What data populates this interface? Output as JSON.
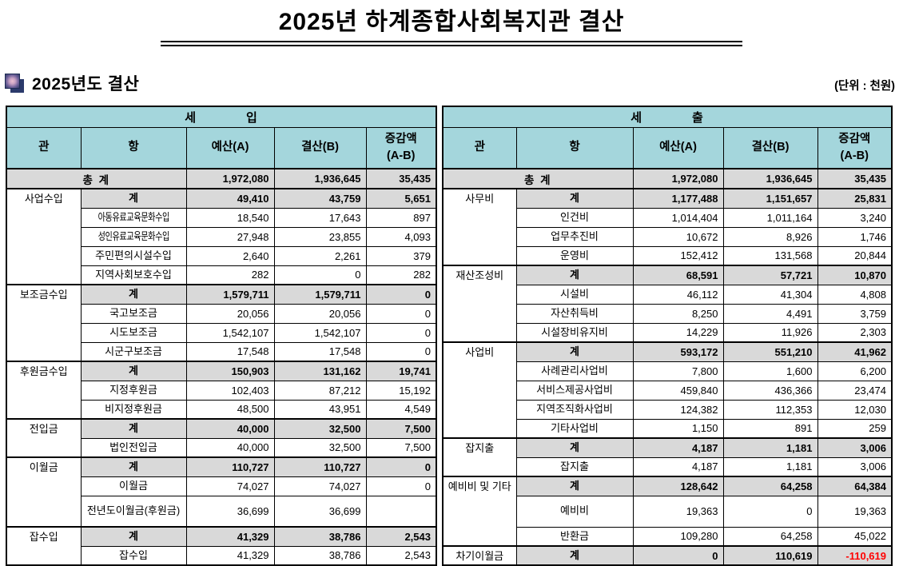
{
  "title": "2025년 하계종합사회복지관 결산",
  "section": {
    "heading": "2025년도 결산",
    "unit_note": "(단위 : 천원)"
  },
  "colors": {
    "header_bg": "#a4d6dc",
    "sum_bg": "#d9d9d9",
    "negative": "#ff0000",
    "border": "#000000"
  },
  "columns": {
    "gwan": "관",
    "hang": "항",
    "budget": "예산(A)",
    "settlement": "결산(B)",
    "diff1": "증감액",
    "diff2": "(A-B)"
  },
  "revenue": {
    "header": "세            입",
    "total": {
      "label": "총 계",
      "budget": "1,972,080",
      "settlement": "1,936,645",
      "diff": "35,435"
    },
    "groups": [
      {
        "name": "사업수입",
        "rows": [
          {
            "item": "계",
            "sum": true,
            "budget": "49,410",
            "settlement": "43,759",
            "diff": "5,651"
          },
          {
            "item": "아동유료교육문화수입",
            "condensed": true,
            "budget": "18,540",
            "settlement": "17,643",
            "diff": "897"
          },
          {
            "item": "성인유료교육문화수입",
            "condensed": true,
            "budget": "27,948",
            "settlement": "23,855",
            "diff": "4,093"
          },
          {
            "item": "주민편의시설수입",
            "budget": "2,640",
            "settlement": "2,261",
            "diff": "379"
          },
          {
            "item": "지역사회보호수입",
            "budget": "282",
            "settlement": "0",
            "diff": "282"
          }
        ]
      },
      {
        "name": "보조금수입",
        "rows": [
          {
            "item": "계",
            "sum": true,
            "budget": "1,579,711",
            "settlement": "1,579,711",
            "diff": "0"
          },
          {
            "item": "국고보조금",
            "budget": "20,056",
            "settlement": "20,056",
            "diff": "0"
          },
          {
            "item": "시도보조금",
            "budget": "1,542,107",
            "settlement": "1,542,107",
            "diff": "0"
          },
          {
            "item": "시군구보조금",
            "budget": "17,548",
            "settlement": "17,548",
            "diff": "0"
          }
        ]
      },
      {
        "name": "후원금수입",
        "rows": [
          {
            "item": "계",
            "sum": true,
            "budget": "150,903",
            "settlement": "131,162",
            "diff": "19,741"
          },
          {
            "item": "지정후원금",
            "budget": "102,403",
            "settlement": "87,212",
            "diff": "15,192"
          },
          {
            "item": "비지정후원금",
            "budget": "48,500",
            "settlement": "43,951",
            "diff": "4,549"
          }
        ]
      },
      {
        "name": "전입금",
        "rows": [
          {
            "item": "계",
            "sum": true,
            "budget": "40,000",
            "settlement": "32,500",
            "diff": "7,500"
          },
          {
            "item": "법인전입금",
            "budget": "40,000",
            "settlement": "32,500",
            "diff": "7,500"
          }
        ]
      },
      {
        "name": "이월금",
        "rows": [
          {
            "item": "계",
            "sum": true,
            "budget": "110,727",
            "settlement": "110,727",
            "diff": "0"
          },
          {
            "item": "이월금",
            "budget": "74,027",
            "settlement": "74,027",
            "diff": "0"
          },
          {
            "item": "전년도이월금(후원금)",
            "tall": true,
            "budget": "36,699",
            "settlement": "36,699",
            "diff": ""
          }
        ]
      },
      {
        "name": "잡수입",
        "rows": [
          {
            "item": "계",
            "sum": true,
            "budget": "41,329",
            "settlement": "38,786",
            "diff": "2,543"
          },
          {
            "item": "잡수입",
            "budget": "41,329",
            "settlement": "38,786",
            "diff": "2,543"
          }
        ]
      }
    ]
  },
  "expenditure": {
    "header": "세            출",
    "total": {
      "label": "총 계",
      "budget": "1,972,080",
      "settlement": "1,936,645",
      "diff": "35,435"
    },
    "groups": [
      {
        "name": "사무비",
        "rows": [
          {
            "item": "계",
            "sum": true,
            "budget": "1,177,488",
            "settlement": "1,151,657",
            "diff": "25,831"
          },
          {
            "item": "인건비",
            "budget": "1,014,404",
            "settlement": "1,011,164",
            "diff": "3,240"
          },
          {
            "item": "업무추진비",
            "budget": "10,672",
            "settlement": "8,926",
            "diff": "1,746"
          },
          {
            "item": "운영비",
            "budget": "152,412",
            "settlement": "131,568",
            "diff": "20,844"
          }
        ]
      },
      {
        "name": "재산조성비",
        "rows": [
          {
            "item": "계",
            "sum": true,
            "budget": "68,591",
            "settlement": "57,721",
            "diff": "10,870"
          },
          {
            "item": "시설비",
            "budget": "46,112",
            "settlement": "41,304",
            "diff": "4,808"
          },
          {
            "item": "자산취득비",
            "budget": "8,250",
            "settlement": "4,491",
            "diff": "3,759"
          },
          {
            "item": "시설장비유지비",
            "budget": "14,229",
            "settlement": "11,926",
            "diff": "2,303"
          }
        ]
      },
      {
        "name": "사업비",
        "rows": [
          {
            "item": "계",
            "sum": true,
            "budget": "593,172",
            "settlement": "551,210",
            "diff": "41,962"
          },
          {
            "item": "사례관리사업비",
            "budget": "7,800",
            "settlement": "1,600",
            "diff": "6,200"
          },
          {
            "item": "서비스제공사업비",
            "budget": "459,840",
            "settlement": "436,366",
            "diff": "23,474"
          },
          {
            "item": "지역조직화사업비",
            "budget": "124,382",
            "settlement": "112,353",
            "diff": "12,030"
          },
          {
            "item": "기타사업비",
            "budget": "1,150",
            "settlement": "891",
            "diff": "259"
          }
        ]
      },
      {
        "name": "잡지출",
        "rows": [
          {
            "item": "계",
            "sum": true,
            "budget": "4,187",
            "settlement": "1,181",
            "diff": "3,006"
          },
          {
            "item": "잡지출",
            "budget": "4,187",
            "settlement": "1,181",
            "diff": "3,006"
          }
        ]
      },
      {
        "name": "예비비 및 기타",
        "rows": [
          {
            "item": "계",
            "sum": true,
            "budget": "128,642",
            "settlement": "64,258",
            "diff": "64,384"
          },
          {
            "item": "예비비",
            "tall": true,
            "budget": "19,363",
            "settlement": "0",
            "diff": "19,363"
          },
          {
            "item": "반환금",
            "budget": "109,280",
            "settlement": "64,258",
            "diff": "45,022"
          }
        ]
      },
      {
        "name": "차기이월금",
        "rows": [
          {
            "item": "계",
            "sum": true,
            "budget": "0",
            "settlement": "110,619",
            "diff": "-110,619",
            "negative": true
          }
        ]
      }
    ]
  }
}
